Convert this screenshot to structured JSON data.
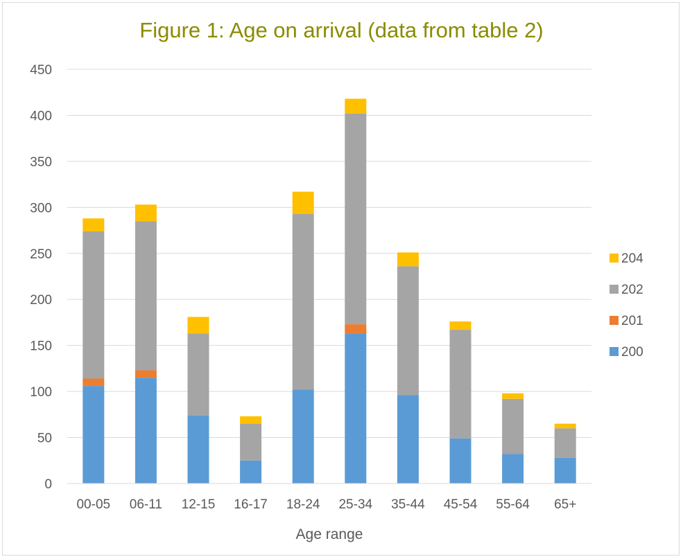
{
  "chart_data": {
    "type": "bar",
    "stacked": true,
    "title": "Figure 1: Age on arrival (data from table 2)",
    "xlabel": "Age range",
    "ylabel": "",
    "ylim": [
      0,
      450
    ],
    "yticks": [
      0,
      50,
      100,
      150,
      200,
      250,
      300,
      350,
      400,
      450
    ],
    "grid": true,
    "legend_position": "right",
    "categories": [
      "00-05",
      "06-11",
      "12-15",
      "16-17",
      "18-24",
      "25-34",
      "35-44",
      "45-54",
      "55-64",
      "65+"
    ],
    "series": [
      {
        "name": "200",
        "color": "#5b9bd5",
        "values": [
          106,
          115,
          74,
          25,
          102,
          163,
          96,
          49,
          32,
          28
        ]
      },
      {
        "name": "201",
        "color": "#ed7d31",
        "values": [
          8,
          8,
          0,
          0,
          0,
          10,
          0,
          0,
          0,
          0
        ]
      },
      {
        "name": "202",
        "color": "#a5a5a5",
        "values": [
          160,
          162,
          89,
          40,
          191,
          229,
          140,
          118,
          60,
          32
        ]
      },
      {
        "name": "204",
        "color": "#ffc000",
        "values": [
          14,
          18,
          18,
          8,
          24,
          16,
          15,
          9,
          6,
          5
        ]
      }
    ]
  }
}
